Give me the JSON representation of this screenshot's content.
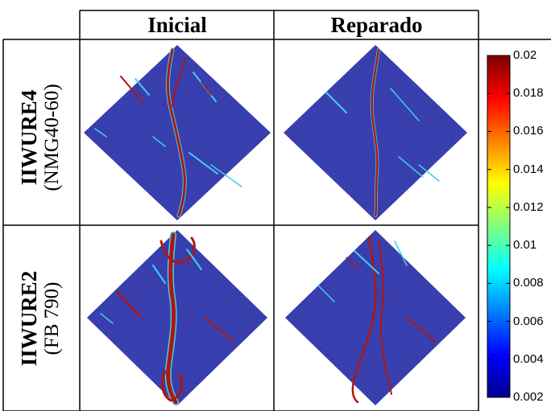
{
  "columns": [
    {
      "label": "Inicial"
    },
    {
      "label": "Reparado"
    }
  ],
  "rows": [
    {
      "name": "IIWURE4",
      "sub": "(NMG40-60)"
    },
    {
      "name": "IIWURE2",
      "sub": "(FB 790)"
    }
  ],
  "colorbar": {
    "ticks": [
      "0.02",
      "0.018",
      "0.016",
      "0.014",
      "0.012",
      "0.01",
      "0.008",
      "0.006",
      "0.004",
      "0.002"
    ],
    "min": 0.002,
    "max": 0.02,
    "colormap": "jet"
  },
  "colors": {
    "background": "#2a2fa3",
    "crack": "#b0160f",
    "highlight": "#3fd0e8"
  }
}
